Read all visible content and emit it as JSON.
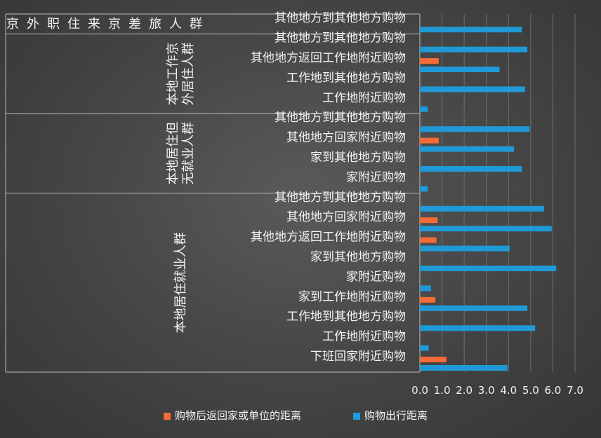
{
  "chart_data": {
    "type": "bar",
    "orientation": "horizontal",
    "xlim": [
      0,
      7
    ],
    "x_ticks": [
      "0.0",
      "1.0",
      "2.0",
      "3.0",
      "4.0",
      "5.0",
      "6.0",
      "7.0"
    ],
    "grid": true,
    "legend_position": "bottom",
    "colors": {
      "返回": "#f46b36",
      "出行": "#1f9ad6"
    },
    "series": [
      {
        "name": "购物后返回家或单位的距离",
        "color": "#f46b36"
      },
      {
        "name": "购物出行距离",
        "color": "#1f9ad6"
      }
    ],
    "groups": [
      {
        "label": "京外职住来京差旅人群",
        "label_lines": [
          "京",
          "外",
          "职",
          "住",
          "来",
          "京",
          "差",
          "旅",
          "人",
          "群"
        ],
        "label_style": "horizontal-row",
        "categories": [
          {
            "label": "其他地方到其他地方购物",
            "return": null,
            "trip": 4.6
          }
        ]
      },
      {
        "label": "本地工作京外居住人群",
        "label_lines": [
          "本地工作京",
          "外居住人群"
        ],
        "label_style": "vertical-columns",
        "categories": [
          {
            "label": "其他地方到其他地方购物",
            "return": null,
            "trip": 4.85
          },
          {
            "label": "其他地方返回工作地附近购物",
            "return": 0.85,
            "trip": 3.6
          },
          {
            "label": "工作地到其他地方购物",
            "return": null,
            "trip": 4.75
          },
          {
            "label": "工作地附近购物",
            "return": null,
            "trip": 0.35
          }
        ]
      },
      {
        "label": "本地居住但无就业人群",
        "label_lines": [
          "本地居住但",
          "无就业人群"
        ],
        "label_style": "vertical-columns",
        "categories": [
          {
            "label": "其他地方到其他地方购物",
            "return": null,
            "trip": 4.95
          },
          {
            "label": "其他地方回家附近购物",
            "return": 0.85,
            "trip": 4.25
          },
          {
            "label": "家到其他地方购物",
            "return": null,
            "trip": 4.6
          },
          {
            "label": "家附近购物",
            "return": null,
            "trip": 0.35
          }
        ]
      },
      {
        "label": "本地居住就业人群",
        "label_lines": [
          "本地居住就业人群"
        ],
        "label_style": "vertical-columns",
        "categories": [
          {
            "label": "其他地方到其他地方购物",
            "return": null,
            "trip": 5.6
          },
          {
            "label": "其他地方回家附近购物",
            "return": 0.8,
            "trip": 5.95
          },
          {
            "label": "其他地方返回工作地附近购物",
            "return": 0.75,
            "trip": 4.05
          },
          {
            "label": "家到其他地方购物",
            "return": null,
            "trip": 6.15
          },
          {
            "label": "家附近购物",
            "return": null,
            "trip": 0.5
          },
          {
            "label": "家到工作地附近购物",
            "return": 0.7,
            "trip": 4.85
          },
          {
            "label": "工作地到其他地方购物",
            "return": null,
            "trip": 5.2
          },
          {
            "label": "工作地附近购物",
            "return": null,
            "trip": 0.4
          },
          {
            "label": "下班回家附近购物",
            "return": 1.2,
            "trip": 3.95
          }
        ]
      }
    ]
  }
}
